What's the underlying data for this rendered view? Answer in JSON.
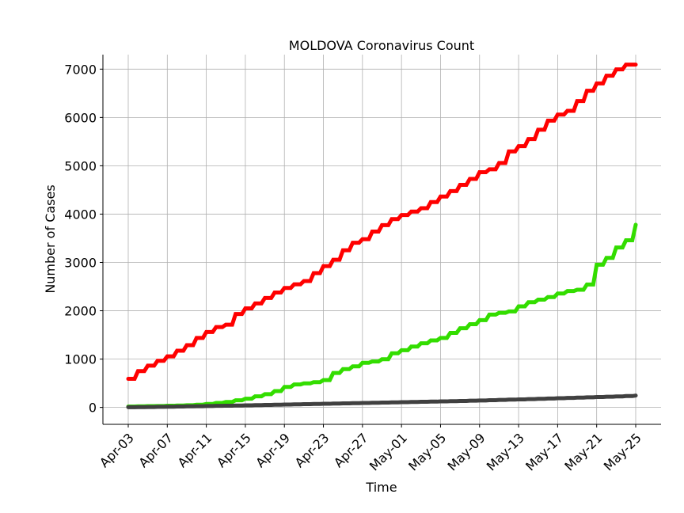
{
  "chart_data": {
    "type": "line",
    "title": "MOLDOVA Coronavirus Count",
    "xlabel": "Time",
    "ylabel": "Number of Cases",
    "x": [
      "Apr-03",
      "Apr-04",
      "Apr-05",
      "Apr-06",
      "Apr-07",
      "Apr-08",
      "Apr-09",
      "Apr-10",
      "Apr-11",
      "Apr-12",
      "Apr-13",
      "Apr-14",
      "Apr-15",
      "Apr-16",
      "Apr-17",
      "Apr-18",
      "Apr-19",
      "Apr-20",
      "Apr-21",
      "Apr-22",
      "Apr-23",
      "Apr-24",
      "Apr-25",
      "Apr-26",
      "Apr-27",
      "Apr-28",
      "Apr-29",
      "Apr-30",
      "May-01",
      "May-02",
      "May-03",
      "May-04",
      "May-05",
      "May-06",
      "May-07",
      "May-08",
      "May-09",
      "May-10",
      "May-11",
      "May-12",
      "May-13",
      "May-14",
      "May-15",
      "May-16",
      "May-17",
      "May-18",
      "May-19",
      "May-20",
      "May-21",
      "May-22",
      "May-23",
      "May-24",
      "May-25"
    ],
    "x_ticks": [
      "Apr-03",
      "Apr-07",
      "Apr-11",
      "Apr-15",
      "Apr-19",
      "Apr-23",
      "Apr-27",
      "May-01",
      "May-05",
      "May-09",
      "May-13",
      "May-17",
      "May-21",
      "May-25"
    ],
    "y_ticks": [
      0,
      1000,
      2000,
      3000,
      4000,
      5000,
      6000,
      7000
    ],
    "ylim": [
      -350,
      7300
    ],
    "grid": true,
    "legend": "none",
    "series": [
      {
        "color": "#ff0000",
        "values": [
          591,
          752,
          864,
          965,
          1056,
          1174,
          1289,
          1438,
          1560,
          1662,
          1712,
          1934,
          2049,
          2153,
          2264,
          2378,
          2472,
          2548,
          2614,
          2778,
          2925,
          3056,
          3252,
          3408,
          3481,
          3638,
          3771,
          3897,
          3980,
          4052,
          4121,
          4248,
          4363,
          4476,
          4605,
          4728,
          4867,
          4927,
          5057,
          5297,
          5406,
          5553,
          5745,
          5934,
          6060,
          6138,
          6340,
          6553,
          6704,
          6864,
          6994,
          7093,
          7093
        ]
      },
      {
        "color": "#33dd00",
        "values": [
          19,
          22,
          26,
          29,
          34,
          39,
          46,
          56,
          72,
          93,
          113,
          147,
          180,
          229,
          274,
          337,
          423,
          476,
          497,
          523,
          566,
          712,
          792,
          849,
          924,
          950,
          997,
          1120,
          1183,
          1259,
          1327,
          1387,
          1437,
          1543,
          1639,
          1722,
          1806,
          1920,
          1957,
          1986,
          2091,
          2176,
          2229,
          2283,
          2358,
          2408,
          2434,
          2544,
          2952,
          3094,
          3310,
          3458,
          3780
        ]
      },
      {
        "color": "#404040",
        "values": [
          5,
          7,
          9,
          12,
          15,
          18,
          22,
          25,
          29,
          32,
          36,
          40,
          44,
          48,
          52,
          56,
          60,
          64,
          68,
          72,
          75,
          80,
          84,
          88,
          92,
          96,
          100,
          104,
          108,
          112,
          116,
          120,
          124,
          129,
          134,
          139,
          144,
          149,
          155,
          161,
          167,
          173,
          179,
          185,
          191,
          197,
          203,
          209,
          215,
          221,
          228,
          235,
          245
        ]
      }
    ]
  }
}
